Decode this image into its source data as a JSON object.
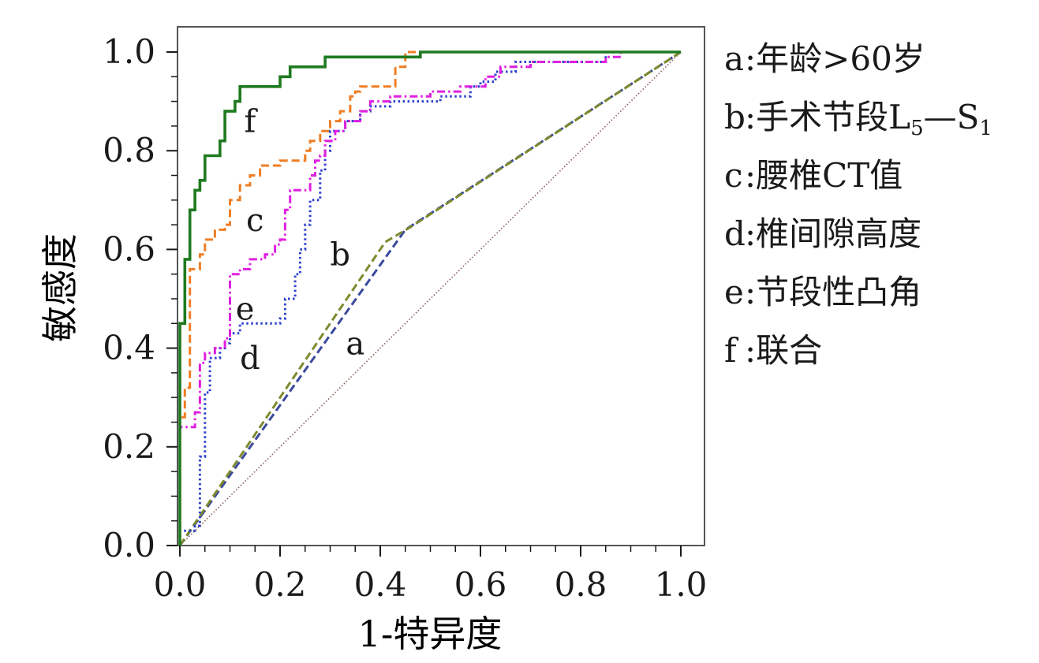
{
  "chart_data": {
    "type": "line",
    "title": "",
    "xlabel": "1-特异度",
    "ylabel": "敏感度",
    "xlim": [
      0,
      1
    ],
    "ylim": [
      0,
      1
    ],
    "xticks": [
      "0.0",
      "0.2",
      "0.4",
      "0.6",
      "0.8",
      "1.0"
    ],
    "yticks": [
      "0.0",
      "0.2",
      "0.4",
      "0.6",
      "0.8",
      "1.0"
    ],
    "grid": false,
    "legend_position": "right",
    "series": [
      {
        "key": "a",
        "name": "年龄>60岁",
        "label_at": [
          0.35,
          0.41
        ],
        "points": [
          [
            0,
            0
          ],
          [
            0.45,
            0.64
          ],
          [
            1,
            1
          ]
        ]
      },
      {
        "key": "b",
        "name": "手术节段L5—S1",
        "name_parts": [
          "手术节段L",
          "5",
          "—S",
          "1"
        ],
        "label_at": [
          0.32,
          0.59
        ],
        "points": [
          [
            0,
            0
          ],
          [
            0.41,
            0.615
          ],
          [
            0.46,
            0.645
          ],
          [
            1,
            1
          ]
        ]
      },
      {
        "key": "c",
        "name": "腰椎CT值",
        "label_at": [
          0.15,
          0.66
        ],
        "points": [
          [
            0,
            0
          ],
          [
            0,
            0.26
          ],
          [
            0.01,
            0.26
          ],
          [
            0.01,
            0.32
          ],
          [
            0.02,
            0.32
          ],
          [
            0.02,
            0.56
          ],
          [
            0.04,
            0.56
          ],
          [
            0.04,
            0.59
          ],
          [
            0.05,
            0.59
          ],
          [
            0.05,
            0.62
          ],
          [
            0.07,
            0.62
          ],
          [
            0.07,
            0.64
          ],
          [
            0.09,
            0.64
          ],
          [
            0.09,
            0.65
          ],
          [
            0.1,
            0.65
          ],
          [
            0.1,
            0.7
          ],
          [
            0.12,
            0.7
          ],
          [
            0.12,
            0.73
          ],
          [
            0.14,
            0.73
          ],
          [
            0.14,
            0.75
          ],
          [
            0.16,
            0.75
          ],
          [
            0.16,
            0.77
          ],
          [
            0.2,
            0.77
          ],
          [
            0.2,
            0.78
          ],
          [
            0.25,
            0.78
          ],
          [
            0.25,
            0.8
          ],
          [
            0.26,
            0.8
          ],
          [
            0.26,
            0.82
          ],
          [
            0.28,
            0.82
          ],
          [
            0.28,
            0.84
          ],
          [
            0.3,
            0.84
          ],
          [
            0.3,
            0.86
          ],
          [
            0.32,
            0.86
          ],
          [
            0.32,
            0.88
          ],
          [
            0.34,
            0.88
          ],
          [
            0.34,
            0.91
          ],
          [
            0.35,
            0.91
          ],
          [
            0.35,
            0.92
          ],
          [
            0.36,
            0.92
          ],
          [
            0.36,
            0.93
          ],
          [
            0.43,
            0.93
          ],
          [
            0.43,
            0.97
          ],
          [
            0.45,
            0.97
          ],
          [
            0.45,
            1.0
          ],
          [
            0.48,
            1.0
          ],
          [
            1,
            1
          ]
        ]
      },
      {
        "key": "d",
        "name": "椎间隙高度",
        "label_at": [
          0.14,
          0.38
        ],
        "points": [
          [
            0,
            0
          ],
          [
            0,
            0.03
          ],
          [
            0.03,
            0.03
          ],
          [
            0.03,
            0.04
          ],
          [
            0.04,
            0.04
          ],
          [
            0.04,
            0.18
          ],
          [
            0.05,
            0.18
          ],
          [
            0.05,
            0.31
          ],
          [
            0.06,
            0.31
          ],
          [
            0.06,
            0.38
          ],
          [
            0.08,
            0.38
          ],
          [
            0.08,
            0.4
          ],
          [
            0.09,
            0.4
          ],
          [
            0.09,
            0.41
          ],
          [
            0.1,
            0.41
          ],
          [
            0.1,
            0.43
          ],
          [
            0.12,
            0.43
          ],
          [
            0.12,
            0.45
          ],
          [
            0.2,
            0.45
          ],
          [
            0.2,
            0.46
          ],
          [
            0.21,
            0.46
          ],
          [
            0.21,
            0.5
          ],
          [
            0.23,
            0.5
          ],
          [
            0.23,
            0.55
          ],
          [
            0.24,
            0.55
          ],
          [
            0.24,
            0.6
          ],
          [
            0.25,
            0.6
          ],
          [
            0.25,
            0.65
          ],
          [
            0.26,
            0.65
          ],
          [
            0.26,
            0.7
          ],
          [
            0.28,
            0.7
          ],
          [
            0.28,
            0.76
          ],
          [
            0.29,
            0.76
          ],
          [
            0.29,
            0.8
          ],
          [
            0.3,
            0.8
          ],
          [
            0.3,
            0.84
          ],
          [
            0.33,
            0.84
          ],
          [
            0.33,
            0.86
          ],
          [
            0.36,
            0.86
          ],
          [
            0.36,
            0.88
          ],
          [
            0.38,
            0.88
          ],
          [
            0.38,
            0.89
          ],
          [
            0.42,
            0.89
          ],
          [
            0.42,
            0.9
          ],
          [
            0.52,
            0.9
          ],
          [
            0.52,
            0.91
          ],
          [
            0.58,
            0.91
          ],
          [
            0.58,
            0.93
          ],
          [
            0.6,
            0.93
          ],
          [
            0.6,
            0.94
          ],
          [
            0.63,
            0.94
          ],
          [
            0.63,
            0.96
          ],
          [
            0.67,
            0.96
          ],
          [
            0.67,
            0.98
          ],
          [
            0.85,
            0.98
          ],
          [
            0.85,
            1.0
          ],
          [
            1,
            1
          ]
        ]
      },
      {
        "key": "e",
        "name": "节段性凸角",
        "label_at": [
          0.13,
          0.48
        ],
        "points": [
          [
            0,
            0
          ],
          [
            0,
            0.24
          ],
          [
            0.03,
            0.24
          ],
          [
            0.03,
            0.27
          ],
          [
            0.04,
            0.27
          ],
          [
            0.04,
            0.37
          ],
          [
            0.05,
            0.37
          ],
          [
            0.05,
            0.39
          ],
          [
            0.07,
            0.39
          ],
          [
            0.07,
            0.4
          ],
          [
            0.09,
            0.4
          ],
          [
            0.09,
            0.42
          ],
          [
            0.1,
            0.42
          ],
          [
            0.1,
            0.55
          ],
          [
            0.12,
            0.55
          ],
          [
            0.12,
            0.56
          ],
          [
            0.14,
            0.56
          ],
          [
            0.14,
            0.58
          ],
          [
            0.17,
            0.58
          ],
          [
            0.17,
            0.59
          ],
          [
            0.19,
            0.59
          ],
          [
            0.19,
            0.61
          ],
          [
            0.2,
            0.61
          ],
          [
            0.2,
            0.62
          ],
          [
            0.21,
            0.62
          ],
          [
            0.21,
            0.68
          ],
          [
            0.22,
            0.68
          ],
          [
            0.22,
            0.72
          ],
          [
            0.26,
            0.72
          ],
          [
            0.26,
            0.75
          ],
          [
            0.27,
            0.75
          ],
          [
            0.27,
            0.78
          ],
          [
            0.28,
            0.78
          ],
          [
            0.28,
            0.79
          ],
          [
            0.29,
            0.79
          ],
          [
            0.29,
            0.82
          ],
          [
            0.31,
            0.82
          ],
          [
            0.31,
            0.84
          ],
          [
            0.33,
            0.84
          ],
          [
            0.33,
            0.86
          ],
          [
            0.36,
            0.86
          ],
          [
            0.36,
            0.88
          ],
          [
            0.38,
            0.88
          ],
          [
            0.38,
            0.9
          ],
          [
            0.42,
            0.9
          ],
          [
            0.42,
            0.91
          ],
          [
            0.5,
            0.91
          ],
          [
            0.5,
            0.92
          ],
          [
            0.56,
            0.92
          ],
          [
            0.56,
            0.93
          ],
          [
            0.61,
            0.93
          ],
          [
            0.61,
            0.95
          ],
          [
            0.64,
            0.95
          ],
          [
            0.64,
            0.97
          ],
          [
            0.7,
            0.97
          ],
          [
            0.7,
            0.98
          ],
          [
            0.85,
            0.98
          ],
          [
            0.85,
            0.99
          ],
          [
            0.88,
            0.99
          ],
          [
            0.88,
            1.0
          ],
          [
            1,
            1
          ]
        ]
      },
      {
        "key": "f",
        "name": "联合",
        "label_at": [
          0.14,
          0.86
        ],
        "points": [
          [
            0,
            0
          ],
          [
            0,
            0.45
          ],
          [
            0.01,
            0.45
          ],
          [
            0.01,
            0.58
          ],
          [
            0.02,
            0.58
          ],
          [
            0.02,
            0.68
          ],
          [
            0.03,
            0.68
          ],
          [
            0.03,
            0.72
          ],
          [
            0.04,
            0.72
          ],
          [
            0.04,
            0.74
          ],
          [
            0.05,
            0.74
          ],
          [
            0.05,
            0.79
          ],
          [
            0.08,
            0.79
          ],
          [
            0.08,
            0.82
          ],
          [
            0.09,
            0.82
          ],
          [
            0.09,
            0.88
          ],
          [
            0.11,
            0.88
          ],
          [
            0.11,
            0.9
          ],
          [
            0.12,
            0.9
          ],
          [
            0.12,
            0.93
          ],
          [
            0.2,
            0.93
          ],
          [
            0.2,
            0.95
          ],
          [
            0.22,
            0.95
          ],
          [
            0.22,
            0.97
          ],
          [
            0.29,
            0.97
          ],
          [
            0.29,
            0.99
          ],
          [
            0.48,
            0.99
          ],
          [
            0.48,
            1.0
          ],
          [
            1,
            1
          ]
        ]
      }
    ],
    "reference_line": [
      [
        0,
        0
      ],
      [
        1,
        1
      ]
    ]
  },
  "styles": {
    "axis_color": "#1a1a1a",
    "frame_color": "#555555",
    "series": {
      "a": {
        "color": "#3a4a9c",
        "dash": "dashed"
      },
      "b": {
        "color": "#7d8a2e",
        "dash": "dashed"
      },
      "c": {
        "color": "#ef7d23",
        "dash": "dashed"
      },
      "d": {
        "color": "#2b3fcc",
        "dash": "dotted"
      },
      "e": {
        "color": "#e01fe0",
        "dash": "dash-dot"
      },
      "f": {
        "color": "#1f7a1f",
        "dash": "solid"
      }
    },
    "reference_color": "#8b5a5a"
  }
}
